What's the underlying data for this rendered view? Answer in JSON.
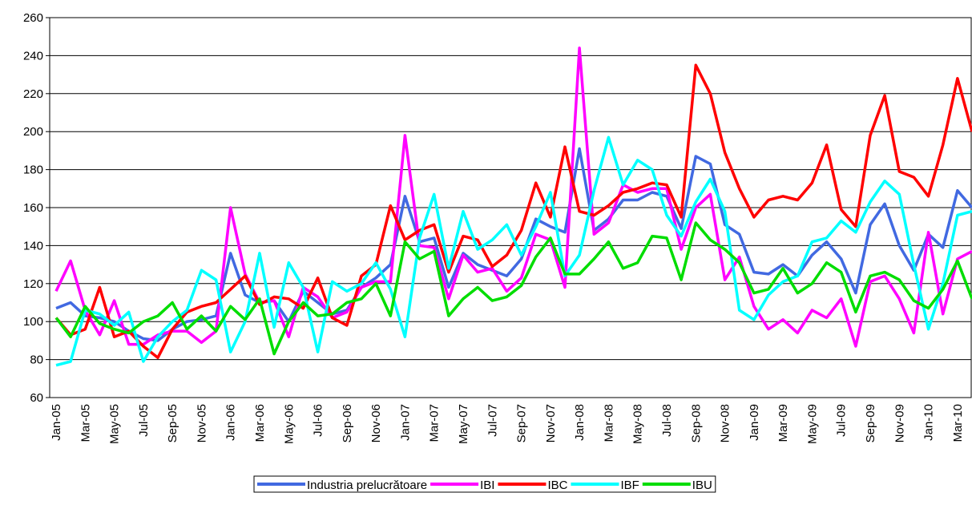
{
  "chart_data": {
    "type": "line",
    "categories": [
      "Jan-05",
      null,
      "Mar-05",
      null,
      "May-05",
      null,
      "Jul-05",
      null,
      "Sep-05",
      null,
      "Nov-05",
      null,
      "Jan-06",
      null,
      "Mar-06",
      null,
      "May-06",
      null,
      "Jul-06",
      null,
      "Sep-06",
      null,
      "Nov-06",
      null,
      "Jan-07",
      null,
      "Mar-07",
      null,
      "May-07",
      null,
      "Jul-07",
      null,
      "Sep-07",
      null,
      "Nov-07",
      null,
      "Jan-08",
      null,
      "Mar-08",
      null,
      "May-08",
      null,
      "Jul-08",
      null,
      "Sep-08",
      null,
      "Nov-08",
      null,
      "Jan-09",
      null,
      "Mar-09",
      null,
      "May-09",
      null,
      "Jul-09",
      null,
      "Sep-09",
      null,
      "Nov-09",
      null,
      "Jan-10",
      null,
      "Mar-10",
      null
    ],
    "series": [
      {
        "name": "Industria prelucrătoare",
        "color": "#4169e1",
        "values": [
          107,
          110,
          103,
          102,
          100,
          95,
          91,
          90,
          96,
          100,
          101,
          103,
          136,
          114,
          110,
          111,
          100,
          116,
          110,
          104,
          106,
          118,
          123,
          130,
          166,
          142,
          144,
          118,
          136,
          130,
          127,
          124,
          133,
          154,
          150,
          147,
          191,
          148,
          154,
          164,
          164,
          168,
          166,
          149,
          187,
          183,
          151,
          146,
          126,
          125,
          130,
          124,
          135,
          142,
          133,
          115,
          151,
          162,
          140,
          127,
          146,
          139,
          169,
          160
        ]
      },
      {
        "name": "IBI",
        "color": "#ff00ff",
        "values": [
          116,
          132,
          106,
          93,
          111,
          88,
          88,
          93,
          95,
          95,
          89,
          95,
          160,
          125,
          110,
          111,
          92,
          118,
          113,
          102,
          105,
          118,
          121,
          121,
          198,
          140,
          139,
          112,
          135,
          126,
          128,
          116,
          123,
          146,
          143,
          118,
          244,
          146,
          152,
          172,
          168,
          170,
          170,
          138,
          160,
          167,
          122,
          134,
          108,
          96,
          101,
          94,
          106,
          102,
          112,
          87,
          121,
          124,
          112,
          94,
          147,
          104,
          133,
          137
        ]
      },
      {
        "name": "IBC",
        "color": "#ff0000",
        "values": [
          102,
          93,
          96,
          118,
          92,
          95,
          87,
          81,
          96,
          105,
          108,
          110,
          117,
          124,
          109,
          113,
          112,
          107,
          123,
          102,
          98,
          124,
          130,
          161,
          143,
          148,
          151,
          126,
          145,
          143,
          129,
          135,
          148,
          173,
          155,
          192,
          158,
          156,
          161,
          168,
          170,
          173,
          172,
          155,
          235,
          220,
          189,
          170,
          155,
          164,
          166,
          164,
          173,
          193,
          159,
          150,
          198,
          219,
          179,
          176,
          166,
          193,
          228,
          200
        ]
      },
      {
        "name": "IBF",
        "color": "#00ffff",
        "values": [
          77,
          79,
          106,
          104,
          98,
          105,
          79,
          92,
          100,
          106,
          127,
          122,
          84,
          100,
          136,
          97,
          131,
          118,
          84,
          121,
          116,
          120,
          131,
          117,
          92,
          144,
          167,
          128,
          158,
          138,
          143,
          151,
          135,
          150,
          168,
          124,
          135,
          169,
          197,
          172,
          185,
          180,
          156,
          145,
          163,
          175,
          158,
          106,
          101,
          114,
          121,
          124,
          142,
          144,
          153,
          147,
          163,
          174,
          167,
          130,
          96,
          120,
          156,
          158
        ]
      },
      {
        "name": "IBU",
        "color": "#00dd00",
        "values": [
          102,
          92,
          108,
          99,
          96,
          94,
          100,
          103,
          110,
          96,
          103,
          95,
          108,
          101,
          112,
          83,
          100,
          110,
          103,
          104,
          110,
          112,
          120,
          103,
          142,
          133,
          137,
          103,
          112,
          118,
          111,
          113,
          119,
          134,
          144,
          125,
          125,
          133,
          142,
          128,
          131,
          145,
          144,
          122,
          152,
          143,
          138,
          131,
          115,
          117,
          128,
          115,
          120,
          131,
          126,
          105,
          124,
          126,
          122,
          111,
          107,
          117,
          132,
          112
        ]
      }
    ],
    "ylim": [
      60,
      260
    ],
    "yticks": [
      60,
      80,
      100,
      120,
      140,
      160,
      180,
      200,
      220,
      240,
      260
    ],
    "grid": true,
    "legend": "bottom"
  }
}
